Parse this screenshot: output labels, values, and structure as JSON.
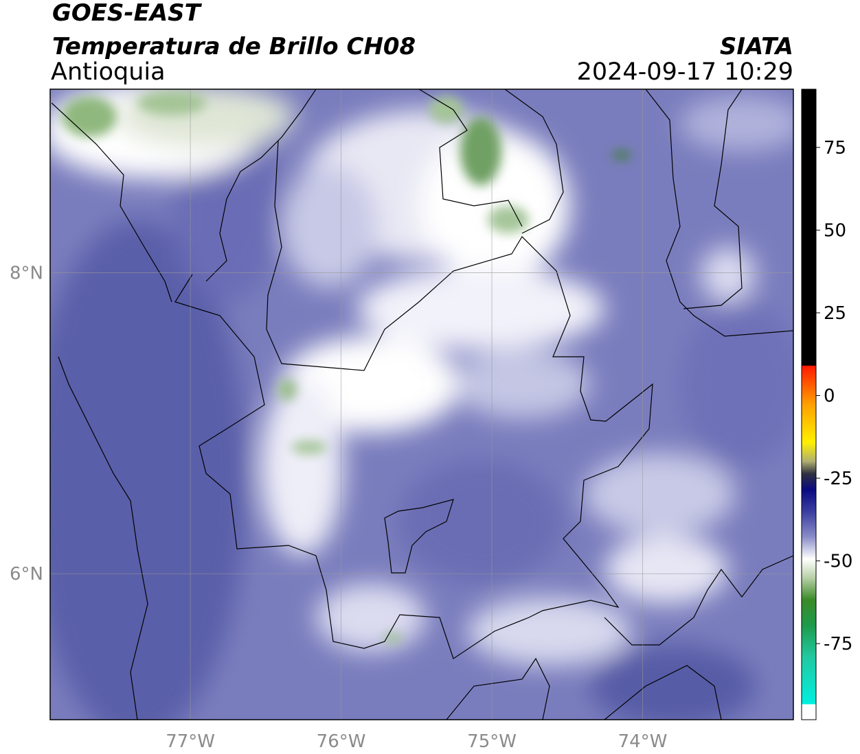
{
  "header": {
    "title": "GOES-EAST",
    "subtitle": "Temperatura de Brillo CH08",
    "region": "Antioquia",
    "source": "SIATA",
    "timestamp": "2024-09-17 10:29"
  },
  "map": {
    "xlim": [
      -77.93,
      -73.0
    ],
    "ylim": [
      5.03,
      9.22
    ],
    "xticks": [
      {
        "value": -77,
        "label": "77°W"
      },
      {
        "value": -76,
        "label": "76°W"
      },
      {
        "value": -75,
        "label": "75°W"
      },
      {
        "value": -74,
        "label": "74°W"
      }
    ],
    "yticks": [
      {
        "value": 8,
        "label": "8°N"
      },
      {
        "value": 6,
        "label": "6°N"
      }
    ],
    "grid": true
  },
  "colorbar": {
    "lim": [
      -98,
      92.6
    ],
    "ticks": [
      75,
      50,
      25,
      0,
      -25,
      -50,
      -75
    ]
  }
}
